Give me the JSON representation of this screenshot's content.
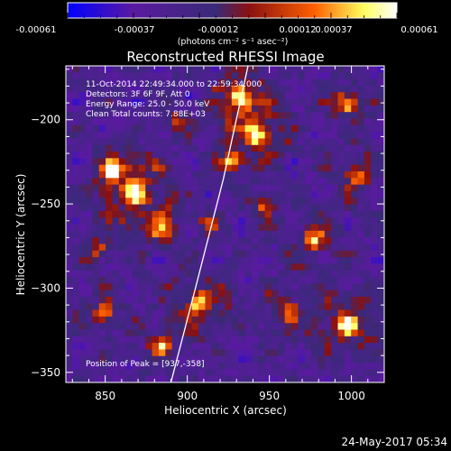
{
  "colorbar": {
    "ticks": [
      "-0.00061",
      "-0.00037",
      "-0.00012",
      "0.00012",
      "0.00037",
      "0.00061"
    ],
    "units": "(photons cm⁻² s⁻¹ asec⁻²)",
    "colors": [
      "#0000ff",
      "#5a1aa0",
      "#3a2a78",
      "#8a1010",
      "#ff6000",
      "#ffff60",
      "#ffffff"
    ]
  },
  "chart_data": {
    "type": "heatmap",
    "title": "Reconstructed RHESSI Image",
    "xlabel": "Heliocentric X (arcsec)",
    "ylabel": "Heliocentric Y (arcsec)",
    "xlim": [
      826,
      1020
    ],
    "ylim": [
      -356,
      -168
    ],
    "xticks": [
      850,
      900,
      950,
      1000
    ],
    "yticks": [
      -200,
      -250,
      -300,
      -350
    ],
    "xtick_labels": [
      "850",
      "900",
      "950",
      "1000"
    ],
    "ytick_labels": [
      "−200",
      "−250",
      "−300",
      "−350"
    ],
    "annotations": {
      "time_range": "11-Oct-2014 22:49:34.000 to 22:59:34.000",
      "detectors": "Detectors: 3F 6F 9F, Att 0",
      "energy": "Energy Range: 25.0 - 50.0 keV",
      "clean": "Clean    Total counts: 7.88E+03",
      "peak": "Position of Peak = [937,-358]"
    },
    "limb": [
      [
        937,
        -168
      ],
      [
        922,
        -235
      ],
      [
        905,
        -300
      ],
      [
        890,
        -356
      ]
    ],
    "grid_cells": [
      48,
      48
    ]
  },
  "footer": {
    "date": "24-May-2017 05:34"
  }
}
